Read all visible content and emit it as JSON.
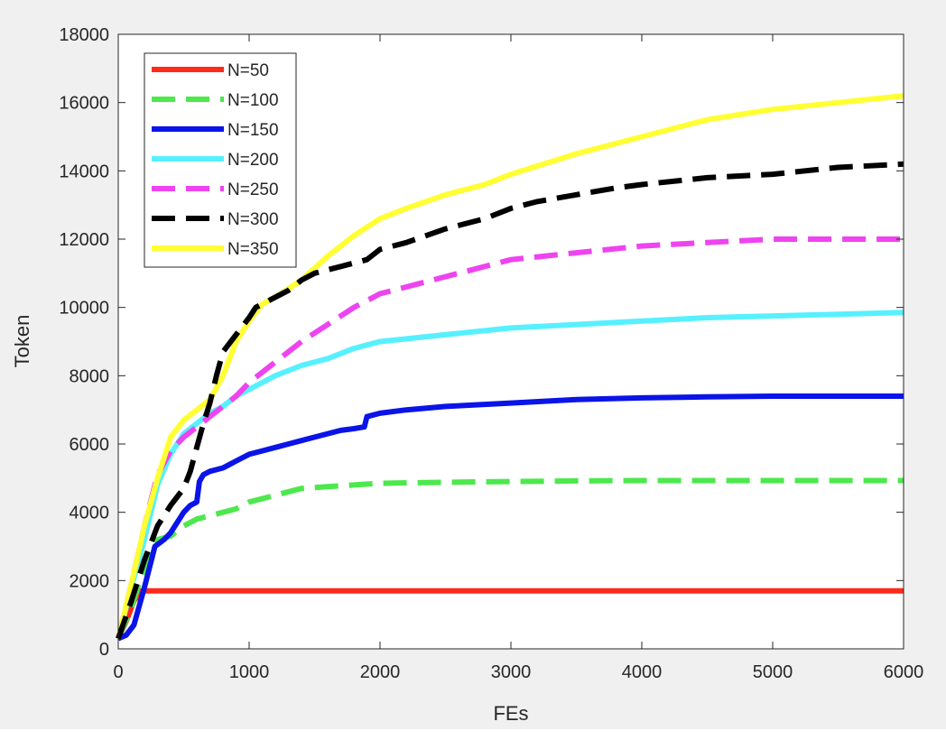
{
  "chart_data": {
    "type": "line",
    "title": "",
    "xlabel": "FEs",
    "ylabel": "Token",
    "xlim": [
      0,
      6000
    ],
    "ylim": [
      0,
      18000
    ],
    "xticks": [
      0,
      1000,
      2000,
      3000,
      4000,
      5000,
      6000
    ],
    "yticks": [
      0,
      2000,
      4000,
      6000,
      8000,
      10000,
      12000,
      14000,
      16000,
      18000
    ],
    "grid": false,
    "legend_position": "top-left",
    "series": [
      {
        "name": "N=50",
        "color": "#ff2a1a",
        "dashed": false,
        "x": [
          0,
          60,
          120,
          180,
          220,
          6000
        ],
        "y": [
          300,
          800,
          1400,
          1700,
          1700,
          1700
        ]
      },
      {
        "name": "N=100",
        "color": "#4de84d",
        "dashed": true,
        "x": [
          0,
          100,
          200,
          300,
          400,
          500,
          600,
          700,
          800,
          900,
          1000,
          1200,
          1400,
          1600,
          1800,
          2000,
          2500,
          3000,
          3500,
          4000,
          4500,
          5000,
          5500,
          6000
        ],
        "y": [
          300,
          1200,
          2400,
          3200,
          3300,
          3600,
          3800,
          3900,
          4000,
          4100,
          4300,
          4500,
          4700,
          4750,
          4800,
          4850,
          4880,
          4900,
          4920,
          4930,
          4930,
          4930,
          4930,
          4930
        ]
      },
      {
        "name": "N=150",
        "color": "#0a14e8",
        "dashed": false,
        "x": [
          0,
          60,
          120,
          200,
          280,
          350,
          400,
          450,
          500,
          550,
          600,
          620,
          650,
          700,
          800,
          900,
          1000,
          1100,
          1200,
          1300,
          1400,
          1500,
          1600,
          1700,
          1800,
          1880,
          1900,
          2000,
          2200,
          2500,
          3000,
          3500,
          4000,
          4500,
          5000,
          5500,
          6000
        ],
        "y": [
          300,
          400,
          700,
          1800,
          3000,
          3200,
          3400,
          3700,
          4000,
          4200,
          4300,
          4900,
          5100,
          5200,
          5300,
          5500,
          5700,
          5800,
          5900,
          6000,
          6100,
          6200,
          6300,
          6400,
          6450,
          6500,
          6800,
          6900,
          7000,
          7100,
          7200,
          7300,
          7350,
          7380,
          7400,
          7400,
          7400
        ]
      },
      {
        "name": "N=200",
        "color": "#57f0ff",
        "dashed": false,
        "x": [
          0,
          100,
          200,
          300,
          400,
          500,
          600,
          700,
          800,
          900,
          1000,
          1200,
          1400,
          1600,
          1800,
          2000,
          2500,
          3000,
          3500,
          4000,
          4500,
          5000,
          5500,
          6000
        ],
        "y": [
          300,
          1800,
          3200,
          4800,
          5700,
          6300,
          6600,
          6900,
          7100,
          7400,
          7600,
          8000,
          8300,
          8500,
          8800,
          9000,
          9200,
          9400,
          9500,
          9600,
          9700,
          9750,
          9800,
          9850
        ]
      },
      {
        "name": "N=250",
        "color": "#ee44f0",
        "dashed": true,
        "x": [
          0,
          100,
          200,
          300,
          400,
          500,
          600,
          700,
          800,
          900,
          1000,
          1200,
          1400,
          1600,
          1800,
          2000,
          2200,
          2500,
          2800,
          3000,
          3500,
          4000,
          4500,
          5000,
          5500,
          6000
        ],
        "y": [
          300,
          1900,
          3600,
          5100,
          5800,
          6200,
          6500,
          6800,
          7100,
          7400,
          7800,
          8400,
          9000,
          9500,
          10000,
          10400,
          10600,
          10900,
          11200,
          11400,
          11600,
          11800,
          11900,
          12000,
          12000,
          12000
        ]
      },
      {
        "name": "N=300",
        "color": "#000000",
        "dashed": true,
        "x": [
          0,
          100,
          200,
          300,
          400,
          500,
          550,
          600,
          650,
          700,
          750,
          800,
          900,
          1000,
          1050,
          1100,
          1200,
          1300,
          1400,
          1500,
          1600,
          1700,
          1800,
          1900,
          2000,
          2200,
          2500,
          2800,
          3000,
          3200,
          3500,
          3800,
          4000,
          4500,
          5000,
          5500,
          6000
        ],
        "y": [
          300,
          1400,
          2600,
          3600,
          4200,
          4700,
          5200,
          5900,
          6600,
          7200,
          8000,
          8700,
          9200,
          9700,
          10000,
          10100,
          10300,
          10500,
          10800,
          11000,
          11100,
          11200,
          11300,
          11400,
          11700,
          11900,
          12300,
          12600,
          12900,
          13100,
          13300,
          13500,
          13600,
          13800,
          13900,
          14100,
          14200
        ]
      },
      {
        "name": "N=350",
        "color": "#ffff33",
        "dashed": false,
        "x": [
          0,
          100,
          200,
          300,
          400,
          500,
          600,
          700,
          800,
          900,
          1000,
          1100,
          1200,
          1400,
          1600,
          1800,
          2000,
          2200,
          2500,
          2800,
          3000,
          3500,
          4000,
          4500,
          5000,
          5500,
          6000
        ],
        "y": [
          300,
          1900,
          3600,
          5000,
          6200,
          6700,
          7000,
          7300,
          8000,
          9000,
          9600,
          10100,
          10300,
          10800,
          11500,
          12100,
          12600,
          12900,
          13300,
          13600,
          13900,
          14500,
          15000,
          15500,
          15800,
          16000,
          16200
        ]
      }
    ]
  }
}
